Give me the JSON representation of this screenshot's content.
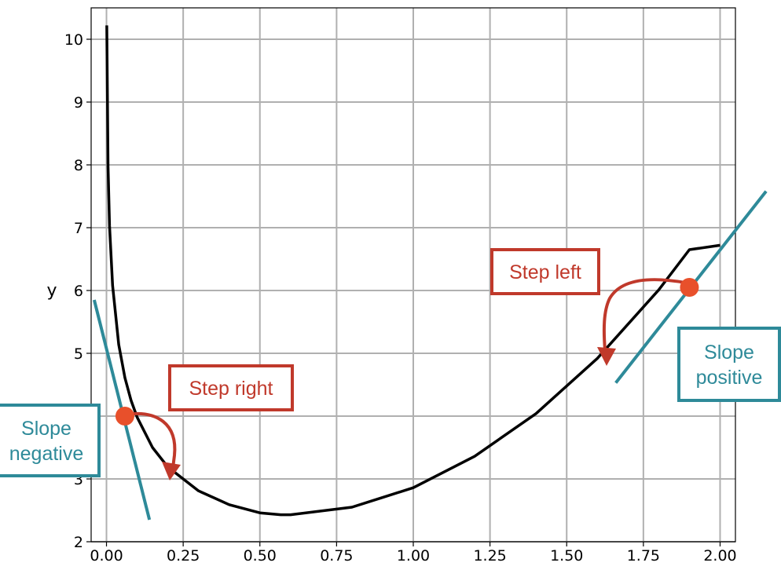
{
  "chart_data": {
    "type": "line",
    "title": "",
    "xlabel": "",
    "ylabel": "y",
    "xlim": [
      -0.05,
      2.05
    ],
    "ylim": [
      2,
      10.5
    ],
    "grid": true,
    "x_ticks": [
      0.0,
      0.25,
      0.5,
      0.75,
      1.0,
      1.25,
      1.5,
      1.75,
      2.0
    ],
    "x_tick_labels": [
      "0.00",
      "0.25",
      "0.50",
      "0.75",
      "1.00",
      "1.25",
      "1.50",
      "1.75",
      "2.00"
    ],
    "y_ticks": [
      2,
      3,
      4,
      5,
      6,
      7,
      8,
      9,
      10
    ],
    "y_tick_labels": [
      "2",
      "3",
      "4",
      "5",
      "6",
      "7",
      "8",
      "9",
      "10"
    ],
    "series": [
      {
        "color": "#000000",
        "x": [
          0.001,
          0.005,
          0.01,
          0.02,
          0.04,
          0.06,
          0.08,
          0.1,
          0.15,
          0.2,
          0.3,
          0.4,
          0.5,
          0.568,
          0.6,
          0.8,
          1.0,
          1.2,
          1.4,
          1.6,
          1.8,
          1.9,
          2.0
        ],
        "y": [
          10.22,
          7.98,
          7.03,
          6.08,
          5.14,
          4.61,
          4.25,
          3.98,
          3.5,
          3.19,
          2.81,
          2.59,
          2.46,
          2.43,
          2.43,
          2.55,
          2.86,
          3.36,
          4.04,
          4.92,
          6.01,
          6.65,
          6.72
        ]
      }
    ],
    "markers": [
      {
        "x": 0.06,
        "y": 4.0,
        "color": "#e8502b"
      },
      {
        "x": 1.9,
        "y": 6.05,
        "color": "#e8502b"
      }
    ],
    "tangent_color": "#2e8a99",
    "annotations": [
      {
        "text": "Step right",
        "color": "#c0392b"
      },
      {
        "text": "Step left",
        "color": "#c0392b"
      },
      {
        "text": [
          "Slope",
          "negative"
        ],
        "color": "#2e8a99"
      },
      {
        "text": [
          "Slope",
          "positive"
        ],
        "color": "#2e8a99"
      }
    ]
  }
}
